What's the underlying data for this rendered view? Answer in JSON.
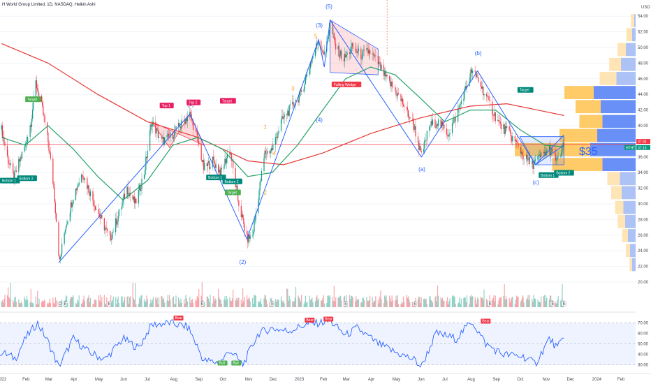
{
  "header": {
    "title": "H World Group Limited, 1D, NASDAQ, Heikin Ashi",
    "currency": "USD"
  },
  "price_axis": {
    "ticks": [
      "54.00",
      "52.00",
      "50.00",
      "48.00",
      "46.00",
      "44.00",
      "42.00",
      "40.00",
      "38.00",
      "36.00",
      "34.00",
      "32.00",
      "30.00",
      "28.00",
      "26.00",
      "24.00",
      "22.00",
      "20.00"
    ],
    "badges": [
      {
        "text": "37.94",
        "color": "#f23645",
        "price": 37.94
      },
      {
        "text": "37.16",
        "color": "#089981",
        "price": 37.16
      }
    ],
    "symbol_badge": "HTHT"
  },
  "rsi_axis": {
    "ticks": [
      "70.00",
      "60.00",
      "50.00",
      "40.00",
      "30.00"
    ]
  },
  "time_axis": {
    "ticks": [
      "2022",
      "Feb",
      "Mar",
      "Apr",
      "May",
      "Jun",
      "Jul",
      "Aug",
      "Sep",
      "Oct",
      "Nov",
      "Dec",
      "2023",
      "Feb",
      "Mar",
      "Apr",
      "May",
      "Jun",
      "Jul",
      "Aug",
      "Sep",
      "Oct",
      "Nov",
      "Dec",
      "2024",
      "Feb"
    ]
  },
  "annotations": {
    "big_label": "$35",
    "wave_labels": [
      {
        "text": "(5)",
        "color": "#2962ff"
      },
      {
        "text": "(3)",
        "color": "#2962ff"
      },
      {
        "text": "5",
        "color": "#f7a21b"
      },
      {
        "text": "3",
        "color": "#f7a21b"
      },
      {
        "text": "1",
        "color": "#f7a21b"
      },
      {
        "text": "4",
        "color": "#f7a21b"
      },
      {
        "text": "2",
        "color": "#f7a21b"
      },
      {
        "text": "(4)",
        "color": "#2962ff"
      },
      {
        "text": "(1)",
        "color": "#7b1fa2"
      },
      {
        "text": "(2)",
        "color": "#2962ff"
      },
      {
        "text": "(a)",
        "color": "#2962ff"
      },
      {
        "text": "(b)",
        "color": "#2962ff"
      },
      {
        "text": "(c)",
        "color": "#2962ff"
      }
    ],
    "boxes": [
      {
        "text": "Target",
        "color": "#4caf50"
      },
      {
        "text": "Bottom 1",
        "color": "#00897b"
      },
      {
        "text": "Bottom 2",
        "color": "#00897b"
      },
      {
        "text": "Top 1",
        "color": "#e91e63"
      },
      {
        "text": "Top 2",
        "color": "#e91e63"
      },
      {
        "text": "Target",
        "color": "#e91e63"
      },
      {
        "text": "Bottom 1",
        "color": "#00897b"
      },
      {
        "text": "Bottom 2",
        "color": "#00897b"
      },
      {
        "text": "Target",
        "color": "#4caf50"
      },
      {
        "text": "Falling Wedge",
        "color": "#f23645"
      },
      {
        "text": "Target",
        "color": "#00897b"
      },
      {
        "text": "Bottom 1",
        "color": "#00897b"
      },
      {
        "text": "Bottom 2",
        "color": "#00897b"
      }
    ],
    "rsi_boxes": [
      {
        "text": "Bear",
        "color": "#f23645"
      },
      {
        "text": "Bear",
        "color": "#f23645"
      },
      {
        "text": "Bear",
        "color": "#f23645"
      },
      {
        "text": "Bear",
        "color": "#f23645"
      },
      {
        "text": "Bull",
        "color": "#4caf50"
      },
      {
        "text": "Bull",
        "color": "#4caf50"
      }
    ],
    "event_markers": [
      "D",
      "E",
      "E",
      "E",
      "E",
      "E",
      "E",
      "E",
      "E",
      "E"
    ]
  },
  "chart_data": {
    "type": "line",
    "title": "H World Group Limited, 1D, NASDAQ, Heikin Ashi",
    "price_range": [
      20,
      55
    ],
    "x_range": [
      "2022-01-01",
      "2024-02-20"
    ],
    "price_path": [
      [
        "2022-01-03",
        39.5
      ],
      [
        "2022-01-10",
        36
      ],
      [
        "2022-01-18",
        33.2
      ],
      [
        "2022-01-25",
        35.5
      ],
      [
        "2022-02-01",
        37.5
      ],
      [
        "2022-02-08",
        40.5
      ],
      [
        "2022-02-14",
        45.5
      ],
      [
        "2022-02-22",
        42
      ],
      [
        "2022-03-01",
        38
      ],
      [
        "2022-03-08",
        32
      ],
      [
        "2022-03-15",
        22.5
      ],
      [
        "2022-03-22",
        27
      ],
      [
        "2022-04-01",
        31
      ],
      [
        "2022-04-12",
        34
      ],
      [
        "2022-04-25",
        30.5
      ],
      [
        "2022-05-05",
        28
      ],
      [
        "2022-05-16",
        25.5
      ],
      [
        "2022-05-26",
        28.5
      ],
      [
        "2022-06-06",
        32
      ],
      [
        "2022-06-16",
        30
      ],
      [
        "2022-06-27",
        34
      ],
      [
        "2022-07-06",
        40.5
      ],
      [
        "2022-07-18",
        38
      ],
      [
        "2022-07-28",
        38.5
      ],
      [
        "2022-08-10",
        40
      ],
      [
        "2022-08-22",
        41.5
      ],
      [
        "2022-09-01",
        38
      ],
      [
        "2022-09-08",
        34.5
      ],
      [
        "2022-09-19",
        35.5
      ],
      [
        "2022-09-29",
        34
      ],
      [
        "2022-10-10",
        37
      ],
      [
        "2022-10-20",
        30.5
      ],
      [
        "2022-10-31",
        25.5
      ],
      [
        "2022-11-07",
        26
      ],
      [
        "2022-11-14",
        31
      ],
      [
        "2022-11-22",
        36.5
      ],
      [
        "2022-12-01",
        37
      ],
      [
        "2022-12-12",
        40.5
      ],
      [
        "2022-12-22",
        42
      ],
      [
        "2023-01-05",
        44
      ],
      [
        "2023-01-17",
        48
      ],
      [
        "2023-01-27",
        51
      ],
      [
        "2023-02-03",
        49
      ],
      [
        "2023-02-10",
        53
      ],
      [
        "2023-02-17",
        50
      ],
      [
        "2023-02-27",
        48.5
      ],
      [
        "2023-03-09",
        50
      ],
      [
        "2023-03-20",
        49
      ],
      [
        "2023-03-30",
        49.5
      ],
      [
        "2023-04-10",
        48
      ],
      [
        "2023-04-20",
        46
      ],
      [
        "2023-05-01",
        44.5
      ],
      [
        "2023-05-12",
        42.5
      ],
      [
        "2023-05-24",
        40
      ],
      [
        "2023-06-02",
        36
      ],
      [
        "2023-06-12",
        40
      ],
      [
        "2023-06-22",
        40.5
      ],
      [
        "2023-07-05",
        39
      ],
      [
        "2023-07-14",
        41
      ],
      [
        "2023-07-24",
        44
      ],
      [
        "2023-08-03",
        47
      ],
      [
        "2023-08-10",
        46
      ],
      [
        "2023-08-17",
        44.5
      ],
      [
        "2023-08-28",
        42
      ],
      [
        "2023-09-07",
        40
      ],
      [
        "2023-09-18",
        39
      ],
      [
        "2023-09-28",
        37.5
      ],
      [
        "2023-10-06",
        36
      ],
      [
        "2023-10-16",
        35
      ],
      [
        "2023-10-26",
        36
      ],
      [
        "2023-11-06",
        37
      ],
      [
        "2023-11-16",
        35.5
      ],
      [
        "2023-11-24",
        37.5
      ]
    ],
    "ma200_path": [
      [
        "2022-01-03",
        50.5
      ],
      [
        "2022-03-01",
        48
      ],
      [
        "2022-05-01",
        44
      ],
      [
        "2022-07-01",
        40.5
      ],
      [
        "2022-09-01",
        38.5
      ],
      [
        "2022-11-01",
        35.5
      ],
      [
        "2022-12-15",
        35
      ],
      [
        "2023-02-01",
        36.5
      ],
      [
        "2023-04-01",
        39
      ],
      [
        "2023-06-01",
        41
      ],
      [
        "2023-08-01",
        42.5
      ],
      [
        "2023-09-15",
        42.8
      ],
      [
        "2023-11-24",
        41.3
      ]
    ],
    "ma50_path": [
      [
        "2022-01-03",
        38.5
      ],
      [
        "2022-02-01",
        37.5
      ],
      [
        "2022-03-01",
        40
      ],
      [
        "2022-04-01",
        37
      ],
      [
        "2022-05-01",
        33.5
      ],
      [
        "2022-06-01",
        30.5
      ],
      [
        "2022-07-01",
        33
      ],
      [
        "2022-08-01",
        37.5
      ],
      [
        "2022-09-01",
        38.5
      ],
      [
        "2022-10-01",
        37
      ],
      [
        "2022-11-01",
        33.5
      ],
      [
        "2022-12-01",
        34
      ],
      [
        "2023-01-01",
        37.5
      ],
      [
        "2023-02-01",
        42
      ],
      [
        "2023-03-01",
        46
      ],
      [
        "2023-04-01",
        47.5
      ],
      [
        "2023-05-01",
        46.5
      ],
      [
        "2023-06-01",
        43.5
      ],
      [
        "2023-07-01",
        40.5
      ],
      [
        "2023-08-01",
        42
      ],
      [
        "2023-09-01",
        42
      ],
      [
        "2023-10-01",
        39.5
      ],
      [
        "2023-11-01",
        37.5
      ],
      [
        "2023-11-24",
        37.3
      ]
    ],
    "elliott_wave_path": [
      [
        "2022-03-14",
        22.5
      ],
      [
        "2022-08-22",
        41.5
      ],
      [
        "2022-10-31",
        25.5
      ],
      [
        "2023-01-27",
        51
      ],
      [
        "2023-02-03",
        47.5
      ],
      [
        "2023-02-10",
        53.5
      ],
      [
        "2023-06-02",
        36
      ],
      [
        "2023-08-10",
        47
      ],
      [
        "2023-10-20",
        35
      ],
      [
        "2023-11-24",
        37.5
      ]
    ],
    "rsi_range": [
      25,
      75
    ],
    "rsi_levels": [
      70,
      50,
      30
    ],
    "rsi_path": [
      [
        "2022-01-03",
        42
      ],
      [
        "2022-01-20",
        36
      ],
      [
        "2022-02-01",
        55
      ],
      [
        "2022-02-16",
        70
      ],
      [
        "2022-03-01",
        52
      ],
      [
        "2022-03-14",
        28
      ],
      [
        "2022-04-01",
        55
      ],
      [
        "2022-04-20",
        42
      ],
      [
        "2022-05-10",
        35
      ],
      [
        "2022-06-01",
        55
      ],
      [
        "2022-06-20",
        46
      ],
      [
        "2022-07-06",
        68
      ],
      [
        "2022-07-28",
        70
      ],
      [
        "2022-08-20",
        66
      ],
      [
        "2022-09-08",
        34
      ],
      [
        "2022-09-28",
        32
      ],
      [
        "2022-10-10",
        44
      ],
      [
        "2022-10-26",
        30
      ],
      [
        "2022-11-14",
        60
      ],
      [
        "2022-12-01",
        65
      ],
      [
        "2022-12-20",
        62
      ],
      [
        "2023-01-10",
        68
      ],
      [
        "2023-01-27",
        70
      ],
      [
        "2023-02-10",
        72
      ],
      [
        "2023-03-01",
        58
      ],
      [
        "2023-03-15",
        65
      ],
      [
        "2023-04-10",
        50
      ],
      [
        "2023-05-01",
        42
      ],
      [
        "2023-05-24",
        35
      ],
      [
        "2023-06-02",
        28
      ],
      [
        "2023-06-20",
        60
      ],
      [
        "2023-07-15",
        55
      ],
      [
        "2023-08-03",
        72
      ],
      [
        "2023-08-20",
        50
      ],
      [
        "2023-09-10",
        40
      ],
      [
        "2023-10-05",
        38
      ],
      [
        "2023-10-20",
        31
      ],
      [
        "2023-11-06",
        55
      ],
      [
        "2023-11-16",
        46
      ],
      [
        "2023-11-24",
        56
      ]
    ],
    "volume_profile_lanes": [
      {
        "price": 53.4,
        "up": 8,
        "down": 4
      },
      {
        "price": 51.6,
        "up": 14,
        "down": 10
      },
      {
        "price": 49.7,
        "up": 20,
        "down": 28
      },
      {
        "price": 47.8,
        "up": 28,
        "down": 42
      },
      {
        "price": 46.0,
        "up": 40,
        "down": 55
      },
      {
        "price": 44.2,
        "up": 70,
        "down": 120
      },
      {
        "price": 42.4,
        "up": 60,
        "down": 100
      },
      {
        "price": 40.5,
        "up": 55,
        "down": 95
      },
      {
        "price": 38.7,
        "up": 90,
        "down": 110
      },
      {
        "price": 36.9,
        "up": 180,
        "down": 130
      },
      {
        "price": 35.0,
        "up": 120,
        "down": 95
      },
      {
        "price": 33.2,
        "up": 30,
        "down": 45
      },
      {
        "price": 31.4,
        "up": 25,
        "down": 40
      },
      {
        "price": 29.5,
        "up": 20,
        "down": 35
      },
      {
        "price": 27.7,
        "up": 18,
        "down": 30
      },
      {
        "price": 25.9,
        "up": 14,
        "down": 22
      },
      {
        "price": 24.0,
        "up": 10,
        "down": 16
      },
      {
        "price": 22.2,
        "up": 6,
        "down": 10
      }
    ],
    "colors": {
      "up": "#089981",
      "down": "#f23645",
      "ma200": "#e53935",
      "ma50": "#26a269",
      "wave": "#2962ff",
      "rsi": "#2962ff",
      "vp_up": "#ffe0a8",
      "vp_down": "#9fb8f5",
      "vp_up_value_area": "#ffc14d",
      "vp_down_value_area": "#4f7cf5"
    }
  }
}
